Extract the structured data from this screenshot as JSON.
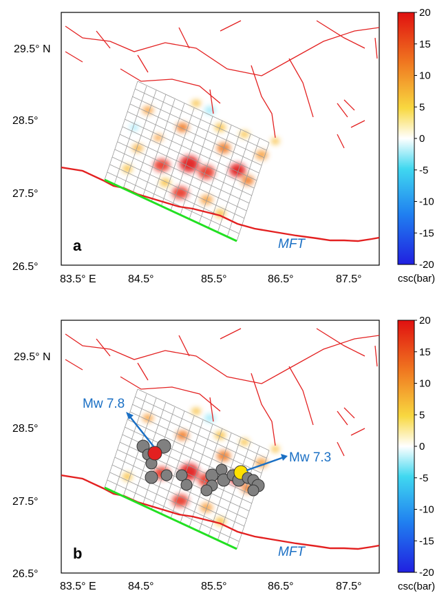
{
  "colors": {
    "fault": "#e32020",
    "mft": "#e32020",
    "rupture_edge": "#22e022",
    "annotation": "#1a6fc4",
    "mainshock": "#e32020",
    "aftershock": "#808080",
    "mw73": "#ffe000",
    "grid": "#9a9a9a"
  },
  "lon_ticks": [
    "83.5° E",
    "84.5°",
    "85.5°",
    "86.5°",
    "87.5°"
  ],
  "lat_ticks": [
    "29.5° N",
    "28.5°",
    "27.5°",
    "26.5°"
  ],
  "colorbar": {
    "ticks": [
      "20",
      "15",
      "10",
      "5",
      "0",
      "-5",
      "-10",
      "-15",
      "-20"
    ],
    "label": "csc(bar)"
  },
  "panels": [
    {
      "label": "a",
      "mft_label": "MFT"
    },
    {
      "label": "b",
      "mft_label": "MFT",
      "annotations": [
        "Mw 7.8",
        "Mw 7.3"
      ]
    }
  ]
}
